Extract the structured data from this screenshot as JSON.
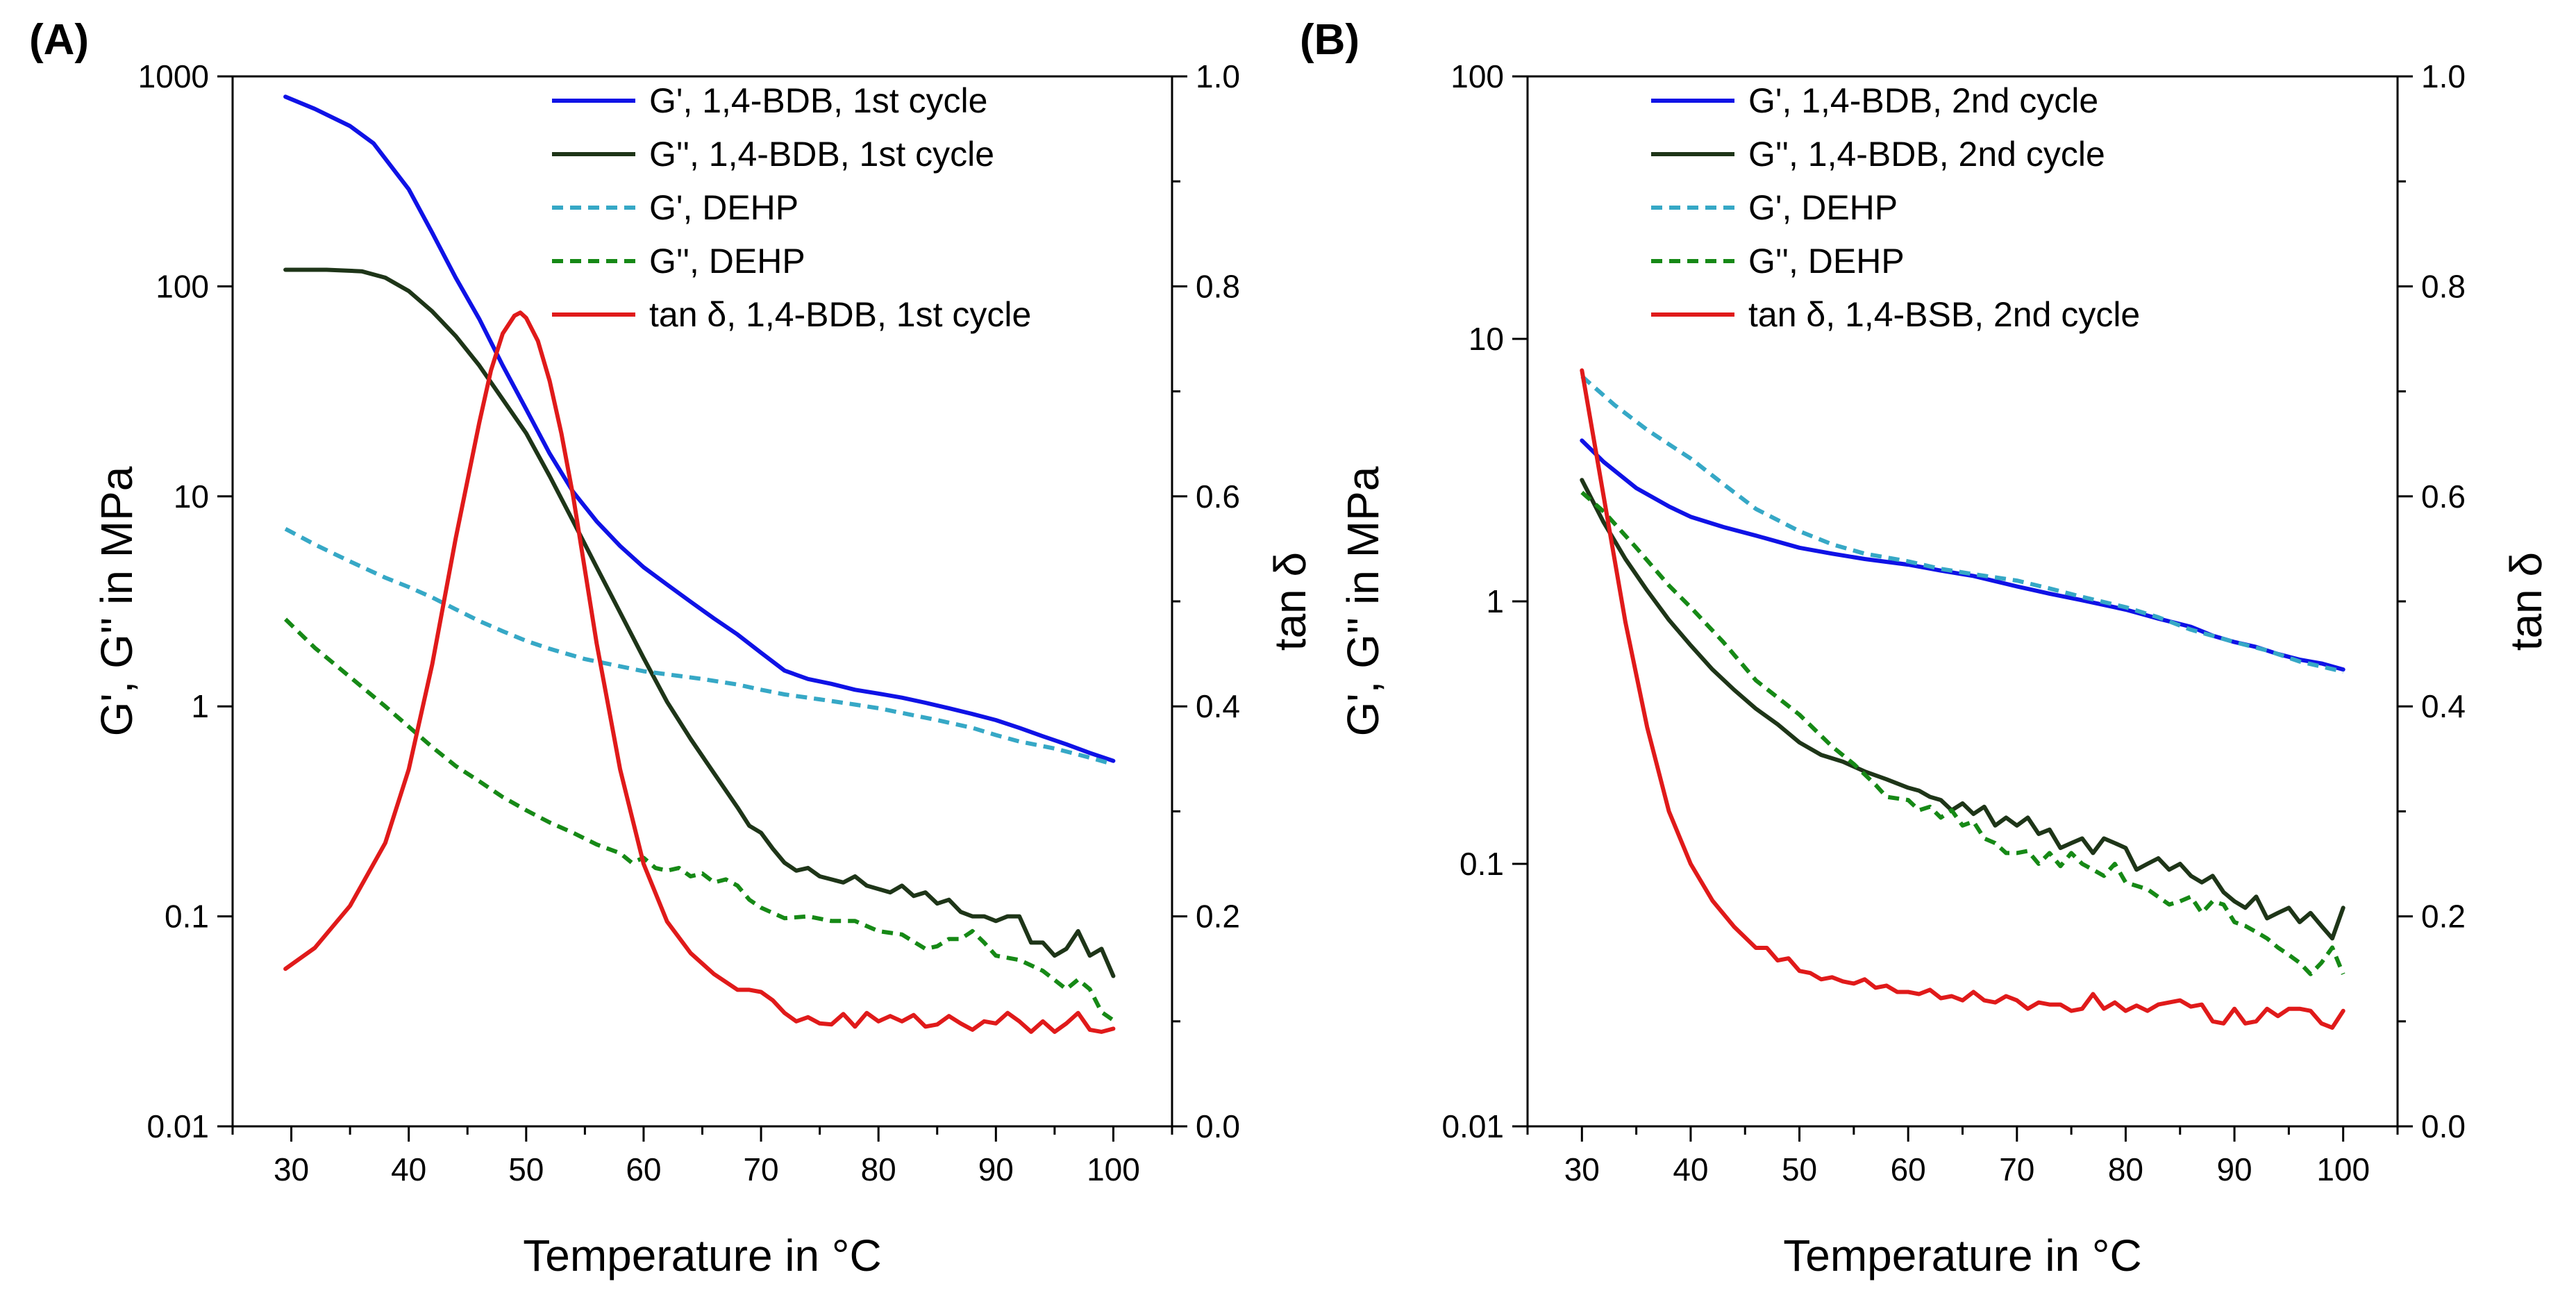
{
  "colors": {
    "blue": "#0f12e6",
    "darkgreen": "#1e3518",
    "cyan": "#36a8c6",
    "green": "#168916",
    "red": "#e01a1a"
  },
  "chart_data": [
    {
      "panel_label": "(A)",
      "type": "line",
      "xlabel": "Temperature in °C",
      "ylabel_left": "G', G'' in MPa",
      "ylabel_right": "tan δ",
      "xlim": [
        25,
        105
      ],
      "xticks": [
        30,
        40,
        50,
        60,
        70,
        80,
        90,
        100
      ],
      "ylim_left": [
        0.01,
        1000
      ],
      "yscale_left": "log",
      "yticks_left": [
        0.01,
        0.1,
        1,
        10,
        100,
        1000
      ],
      "ytick_labels_left": [
        "0.01",
        "0.1",
        "1",
        "10",
        "100",
        "1000"
      ],
      "ylim_right": [
        0.0,
        1.0
      ],
      "yticks_right": [
        0.0,
        0.2,
        0.4,
        0.6,
        0.8,
        1.0
      ],
      "ytick_labels_right": [
        "0.0",
        "0.2",
        "0.4",
        "0.6",
        "0.8",
        "1.0"
      ],
      "legend_position": "top-right",
      "series": [
        {
          "name": "G', 1,4-BDB, 1st cycle",
          "axis": "left",
          "color": "blue",
          "dash": false,
          "x": [
            29.5,
            32,
            35,
            37,
            40,
            42,
            44,
            46,
            48,
            50,
            52,
            54,
            56,
            58,
            60,
            62,
            64,
            66,
            68,
            70,
            72,
            74,
            76,
            78,
            80,
            82,
            84,
            86,
            88,
            90,
            92,
            94,
            96,
            98,
            100
          ],
          "y": [
            800,
            700,
            580,
            480,
            290,
            180,
            110,
            70,
            42,
            26,
            16,
            10.5,
            7.6,
            5.8,
            4.6,
            3.8,
            3.15,
            2.62,
            2.2,
            1.8,
            1.48,
            1.35,
            1.28,
            1.2,
            1.15,
            1.1,
            1.04,
            0.98,
            0.92,
            0.86,
            0.79,
            0.72,
            0.66,
            0.6,
            0.55
          ]
        },
        {
          "name": "G'', 1,4-BDB, 1st cycle",
          "axis": "left",
          "color": "darkgreen",
          "dash": false,
          "x": [
            29.5,
            33,
            36,
            38,
            40,
            42,
            44,
            46,
            48,
            50,
            52,
            54,
            56,
            58,
            60,
            62,
            64,
            66,
            68,
            69,
            70,
            71,
            72,
            73,
            74,
            75,
            76,
            77,
            78,
            79,
            80,
            81,
            82,
            83,
            84,
            85,
            86,
            87,
            88,
            89,
            90,
            91,
            92,
            93,
            94,
            95,
            96,
            97,
            98,
            99,
            100
          ],
          "y": [
            120,
            120,
            118,
            110,
            95,
            76,
            58,
            42,
            29,
            20,
            12.5,
            7.6,
            4.6,
            2.8,
            1.7,
            1.05,
            0.7,
            0.48,
            0.33,
            0.27,
            0.25,
            0.21,
            0.18,
            0.165,
            0.17,
            0.155,
            0.15,
            0.145,
            0.155,
            0.14,
            0.135,
            0.13,
            0.14,
            0.125,
            0.13,
            0.115,
            0.12,
            0.105,
            0.1,
            0.1,
            0.095,
            0.1,
            0.1,
            0.075,
            0.075,
            0.065,
            0.07,
            0.085,
            0.065,
            0.07,
            0.052
          ]
        },
        {
          "name": "G', DEHP",
          "axis": "left",
          "color": "cyan",
          "dash": true,
          "x": [
            29.5,
            32,
            35,
            38,
            40,
            42,
            44,
            46,
            48,
            50,
            52,
            55,
            58,
            60,
            62,
            65,
            68,
            70,
            72,
            75,
            78,
            80,
            82,
            85,
            88,
            90,
            92,
            95,
            98,
            100
          ],
          "y": [
            7,
            5.9,
            4.9,
            4.1,
            3.7,
            3.3,
            2.9,
            2.55,
            2.28,
            2.05,
            1.88,
            1.68,
            1.55,
            1.47,
            1.42,
            1.35,
            1.27,
            1.2,
            1.14,
            1.08,
            1.02,
            0.98,
            0.93,
            0.86,
            0.79,
            0.73,
            0.68,
            0.63,
            0.57,
            0.53
          ]
        },
        {
          "name": "G'', DEHP",
          "axis": "left",
          "color": "green",
          "dash": true,
          "x": [
            29.5,
            32,
            35,
            38,
            40,
            42,
            44,
            46,
            48,
            50,
            52,
            54,
            56,
            58,
            59,
            60,
            61,
            62,
            63,
            64,
            65,
            66,
            67,
            68,
            69,
            70,
            72,
            74,
            76,
            78,
            80,
            82,
            84,
            85,
            86,
            87,
            88,
            89,
            90,
            92,
            94,
            96,
            97,
            98,
            99,
            100
          ],
          "y": [
            2.6,
            1.9,
            1.38,
            1.0,
            0.8,
            0.64,
            0.52,
            0.44,
            0.37,
            0.32,
            0.28,
            0.25,
            0.22,
            0.2,
            0.18,
            0.19,
            0.17,
            0.165,
            0.17,
            0.155,
            0.16,
            0.145,
            0.15,
            0.14,
            0.12,
            0.11,
            0.098,
            0.1,
            0.095,
            0.095,
            0.085,
            0.082,
            0.07,
            0.072,
            0.078,
            0.078,
            0.085,
            0.075,
            0.065,
            0.062,
            0.055,
            0.045,
            0.05,
            0.045,
            0.035,
            0.032
          ]
        },
        {
          "name": "tan δ, 1,4-BDB, 1st cycle",
          "axis": "right",
          "color": "red",
          "dash": false,
          "x": [
            29.5,
            32,
            35,
            38,
            40,
            42,
            44,
            46,
            47,
            48,
            49,
            49.5,
            50,
            51,
            52,
            53,
            54,
            55,
            56,
            58,
            60,
            62,
            64,
            66,
            68,
            69,
            70,
            71,
            72,
            73,
            74,
            75,
            76,
            77,
            78,
            79,
            80,
            81,
            82,
            83,
            84,
            85,
            86,
            87,
            88,
            89,
            90,
            91,
            92,
            93,
            94,
            95,
            96,
            97,
            98,
            99,
            100
          ],
          "y": [
            0.15,
            0.17,
            0.21,
            0.27,
            0.34,
            0.44,
            0.56,
            0.67,
            0.72,
            0.755,
            0.772,
            0.775,
            0.77,
            0.748,
            0.71,
            0.66,
            0.6,
            0.53,
            0.46,
            0.34,
            0.25,
            0.195,
            0.165,
            0.145,
            0.13,
            0.13,
            0.128,
            0.12,
            0.108,
            0.1,
            0.104,
            0.098,
            0.097,
            0.107,
            0.095,
            0.108,
            0.1,
            0.105,
            0.1,
            0.106,
            0.095,
            0.097,
            0.105,
            0.098,
            0.092,
            0.1,
            0.098,
            0.108,
            0.1,
            0.09,
            0.1,
            0.09,
            0.098,
            0.108,
            0.092,
            0.09,
            0.093
          ]
        }
      ]
    },
    {
      "panel_label": "(B)",
      "type": "line",
      "xlabel": "Temperature in °C",
      "ylabel_left": "G', G'' in MPa",
      "ylabel_right": "tan δ",
      "xlim": [
        25,
        105
      ],
      "xticks": [
        30,
        40,
        50,
        60,
        70,
        80,
        90,
        100
      ],
      "ylim_left": [
        0.01,
        100
      ],
      "yscale_left": "log",
      "yticks_left": [
        0.01,
        0.1,
        1,
        10,
        100
      ],
      "ytick_labels_left": [
        "0.01",
        "0.1",
        "1",
        "10",
        "100"
      ],
      "ylim_right": [
        0.0,
        1.0
      ],
      "yticks_right": [
        0.0,
        0.2,
        0.4,
        0.6,
        0.8,
        1.0
      ],
      "ytick_labels_right": [
        "0.0",
        "0.2",
        "0.4",
        "0.6",
        "0.8",
        "1.0"
      ],
      "legend_position": "top-right",
      "series": [
        {
          "name": "G', 1,4-BDB, 2nd cycle",
          "axis": "left",
          "color": "blue",
          "dash": false,
          "x": [
            30,
            32,
            35,
            38,
            40,
            43,
            46,
            50,
            53,
            56,
            60,
            63,
            66,
            70,
            73,
            76,
            80,
            83,
            86,
            88,
            90,
            92,
            94,
            96,
            98,
            100
          ],
          "y": [
            4.1,
            3.4,
            2.7,
            2.3,
            2.1,
            1.92,
            1.78,
            1.6,
            1.52,
            1.45,
            1.38,
            1.31,
            1.25,
            1.14,
            1.07,
            1.01,
            0.93,
            0.86,
            0.8,
            0.74,
            0.7,
            0.67,
            0.63,
            0.6,
            0.58,
            0.55
          ]
        },
        {
          "name": "G'', 1,4-BDB, 2nd cycle",
          "axis": "left",
          "color": "darkgreen",
          "dash": false,
          "x": [
            30,
            32,
            34,
            36,
            38,
            40,
            42,
            44,
            46,
            48,
            50,
            52,
            54,
            56,
            58,
            60,
            61,
            62,
            63,
            64,
            65,
            66,
            67,
            68,
            69,
            70,
            71,
            72,
            73,
            74,
            75,
            76,
            77,
            78,
            79,
            80,
            81,
            82,
            83,
            84,
            85,
            86,
            87,
            88,
            89,
            90,
            91,
            92,
            93,
            94,
            95,
            96,
            97,
            98,
            99,
            100
          ],
          "y": [
            2.9,
            2.0,
            1.45,
            1.1,
            0.85,
            0.68,
            0.55,
            0.46,
            0.39,
            0.34,
            0.29,
            0.26,
            0.245,
            0.225,
            0.21,
            0.195,
            0.19,
            0.18,
            0.175,
            0.16,
            0.17,
            0.155,
            0.165,
            0.14,
            0.15,
            0.14,
            0.15,
            0.13,
            0.135,
            0.115,
            0.12,
            0.125,
            0.11,
            0.125,
            0.12,
            0.115,
            0.095,
            0.1,
            0.105,
            0.095,
            0.1,
            0.09,
            0.085,
            0.09,
            0.078,
            0.072,
            0.068,
            0.075,
            0.062,
            0.065,
            0.068,
            0.06,
            0.065,
            0.058,
            0.052,
            0.068
          ]
        },
        {
          "name": "G', DEHP",
          "axis": "left",
          "color": "cyan",
          "dash": true,
          "x": [
            30,
            33,
            36,
            40,
            43,
            46,
            50,
            53,
            56,
            60,
            63,
            66,
            70,
            73,
            76,
            80,
            83,
            86,
            90,
            93,
            96,
            100
          ],
          "y": [
            7.2,
            5.6,
            4.5,
            3.5,
            2.8,
            2.25,
            1.85,
            1.65,
            1.52,
            1.42,
            1.33,
            1.27,
            1.2,
            1.12,
            1.04,
            0.95,
            0.87,
            0.78,
            0.7,
            0.65,
            0.59,
            0.54
          ]
        },
        {
          "name": "G'', DEHP",
          "axis": "left",
          "color": "green",
          "dash": true,
          "x": [
            30,
            32,
            35,
            38,
            40,
            43,
            46,
            50,
            53,
            55,
            57,
            58,
            60,
            61,
            62,
            63,
            64,
            65,
            66,
            67,
            68,
            69,
            70,
            71,
            72,
            73,
            74,
            75,
            76,
            77,
            78,
            79,
            80,
            82,
            84,
            85,
            86,
            87,
            88,
            89,
            90,
            91,
            92,
            93,
            94,
            95,
            96,
            97,
            98,
            99,
            100
          ],
          "y": [
            2.6,
            2.2,
            1.6,
            1.15,
            0.95,
            0.7,
            0.5,
            0.37,
            0.28,
            0.24,
            0.2,
            0.18,
            0.175,
            0.16,
            0.165,
            0.15,
            0.16,
            0.14,
            0.145,
            0.125,
            0.12,
            0.11,
            0.11,
            0.112,
            0.1,
            0.11,
            0.098,
            0.11,
            0.1,
            0.095,
            0.09,
            0.1,
            0.085,
            0.08,
            0.07,
            0.072,
            0.075,
            0.065,
            0.072,
            0.07,
            0.06,
            0.058,
            0.055,
            0.052,
            0.048,
            0.045,
            0.042,
            0.038,
            0.042,
            0.048,
            0.038
          ]
        },
        {
          "name": "tan δ, 1,4-BSB, 2nd cycle",
          "axis": "right",
          "color": "red",
          "dash": false,
          "x": [
            30,
            32,
            34,
            36,
            38,
            40,
            42,
            44,
            46,
            47,
            48,
            49,
            50,
            51,
            52,
            53,
            54,
            55,
            56,
            57,
            58,
            59,
            60,
            61,
            62,
            63,
            64,
            65,
            66,
            67,
            68,
            69,
            70,
            71,
            72,
            73,
            74,
            75,
            76,
            77,
            78,
            79,
            80,
            81,
            82,
            83,
            84,
            85,
            86,
            87,
            88,
            89,
            90,
            91,
            92,
            93,
            94,
            95,
            96,
            97,
            98,
            99,
            100
          ],
          "y": [
            0.72,
            0.6,
            0.48,
            0.38,
            0.3,
            0.25,
            0.215,
            0.19,
            0.17,
            0.17,
            0.158,
            0.16,
            0.148,
            0.146,
            0.14,
            0.142,
            0.138,
            0.136,
            0.14,
            0.132,
            0.134,
            0.128,
            0.128,
            0.126,
            0.13,
            0.122,
            0.124,
            0.12,
            0.128,
            0.12,
            0.118,
            0.124,
            0.12,
            0.112,
            0.118,
            0.116,
            0.116,
            0.11,
            0.112,
            0.126,
            0.112,
            0.118,
            0.11,
            0.115,
            0.11,
            0.116,
            0.118,
            0.12,
            0.114,
            0.116,
            0.1,
            0.098,
            0.112,
            0.098,
            0.1,
            0.112,
            0.105,
            0.112,
            0.112,
            0.11,
            0.098,
            0.094,
            0.11
          ]
        }
      ]
    }
  ]
}
